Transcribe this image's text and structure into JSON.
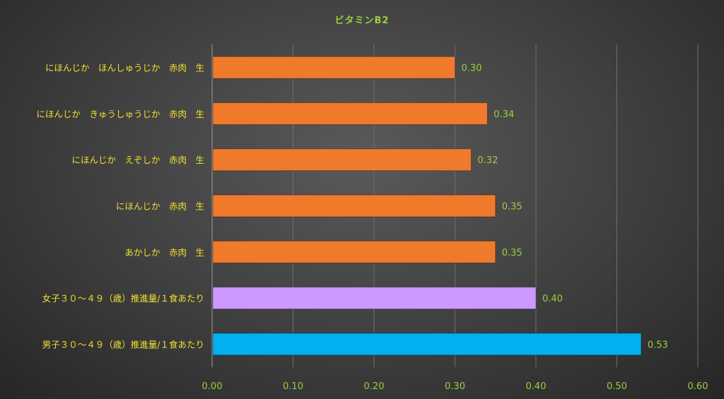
{
  "chart_data": {
    "type": "bar",
    "orientation": "horizontal",
    "title": "ビタミンB2",
    "categories": [
      "にほんじか　ほんしゅうじか　赤肉　生",
      "にほんじか　きゅうしゅうじか　赤肉　生",
      "にほんじか　えぞしか　赤肉　生",
      "にほんじか　赤肉　生",
      "あかしか　赤肉　生",
      "女子３０～４９（歳）推進量/１食あたり",
      "男子３０～４９（歳）推進量/１食あたり"
    ],
    "values": [
      0.3,
      0.34,
      0.32,
      0.35,
      0.35,
      0.4,
      0.53
    ],
    "value_labels": [
      "0.30",
      "0.34",
      "0.32",
      "0.35",
      "0.35",
      "0.40",
      "0.53"
    ],
    "bar_colors": [
      "#f07a2c",
      "#f07a2c",
      "#f07a2c",
      "#f07a2c",
      "#f07a2c",
      "#cc99ff",
      "#00b0f0"
    ],
    "xlim": [
      0,
      0.6
    ],
    "xticks": [
      0,
      0.1,
      0.2,
      0.3,
      0.4,
      0.5,
      0.6
    ],
    "xtick_labels": [
      "0.00",
      "0.10",
      "0.20",
      "0.30",
      "0.40",
      "0.50",
      "0.60"
    ],
    "grid": true,
    "legend": false
  },
  "colors": {
    "title": "#9bd03c",
    "category_label": "#f0e030",
    "value_label": "#9bd03c",
    "tick_label": "#9bd03c",
    "gridline": "#6e6e6e"
  }
}
